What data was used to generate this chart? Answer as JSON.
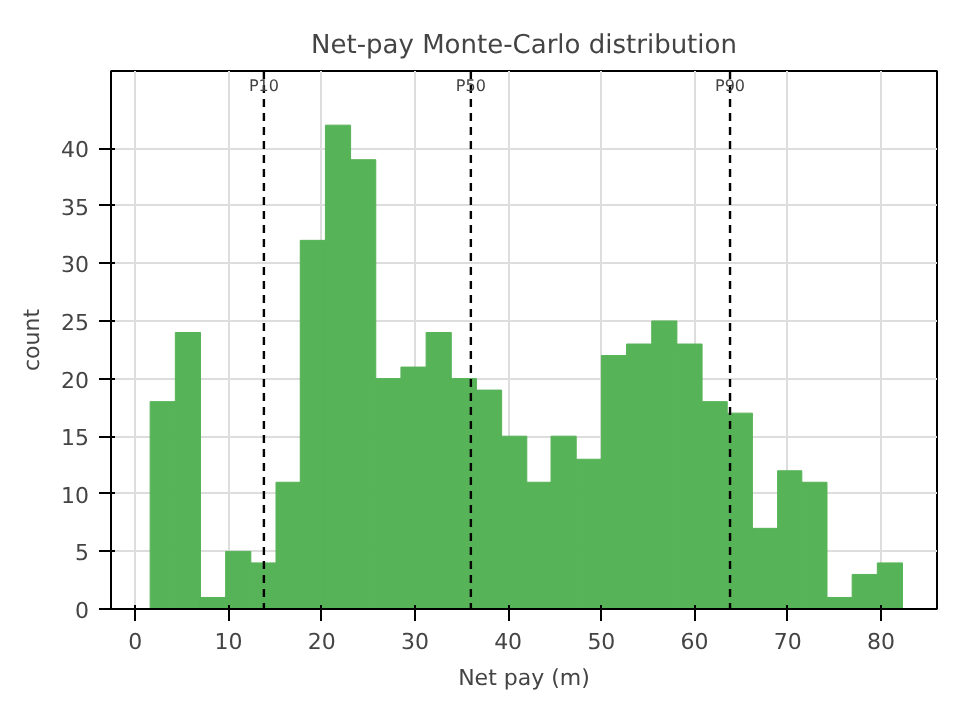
{
  "chart_data": {
    "type": "histogram",
    "title": "Net-pay Monte-Carlo distribution",
    "xlabel": "Net pay (m)",
    "ylabel": "count",
    "bins": [
      1.6,
      4.3,
      7.0,
      9.7,
      12.4,
      15.1,
      17.7,
      20.4,
      23.1,
      25.8,
      28.5,
      31.2,
      33.9,
      36.6,
      39.3,
      42.0,
      44.6,
      47.3,
      50.0,
      52.7,
      55.4,
      58.1,
      60.8,
      63.5,
      66.2,
      68.9,
      71.5,
      74.2,
      76.9,
      79.6,
      82.3
    ],
    "values": [
      18,
      24,
      1,
      5,
      4,
      11,
      32,
      42,
      39,
      20,
      21,
      24,
      20,
      19,
      15,
      11,
      15,
      13,
      22,
      23,
      25,
      23,
      18,
      17,
      7,
      12,
      11,
      1,
      3,
      4
    ],
    "color": "#57b357",
    "xlim": [
      -2.6,
      86
    ],
    "ylim": [
      0,
      46.7
    ],
    "xticks": [
      0,
      10,
      20,
      30,
      40,
      50,
      60,
      70,
      80
    ],
    "yticks": [
      0,
      5,
      10,
      15,
      20,
      25,
      30,
      35,
      40
    ],
    "grid": true,
    "ref_lines": [
      {
        "axis": "x",
        "value": 13.8,
        "label": "P10",
        "color": "#000000",
        "line_style": "dashed"
      },
      {
        "axis": "x",
        "value": 36.0,
        "label": "P50",
        "color": "#000000",
        "line_style": "dashed"
      },
      {
        "axis": "x",
        "value": 63.8,
        "label": "P90",
        "color": "#000000",
        "line_style": "dashed"
      }
    ]
  }
}
